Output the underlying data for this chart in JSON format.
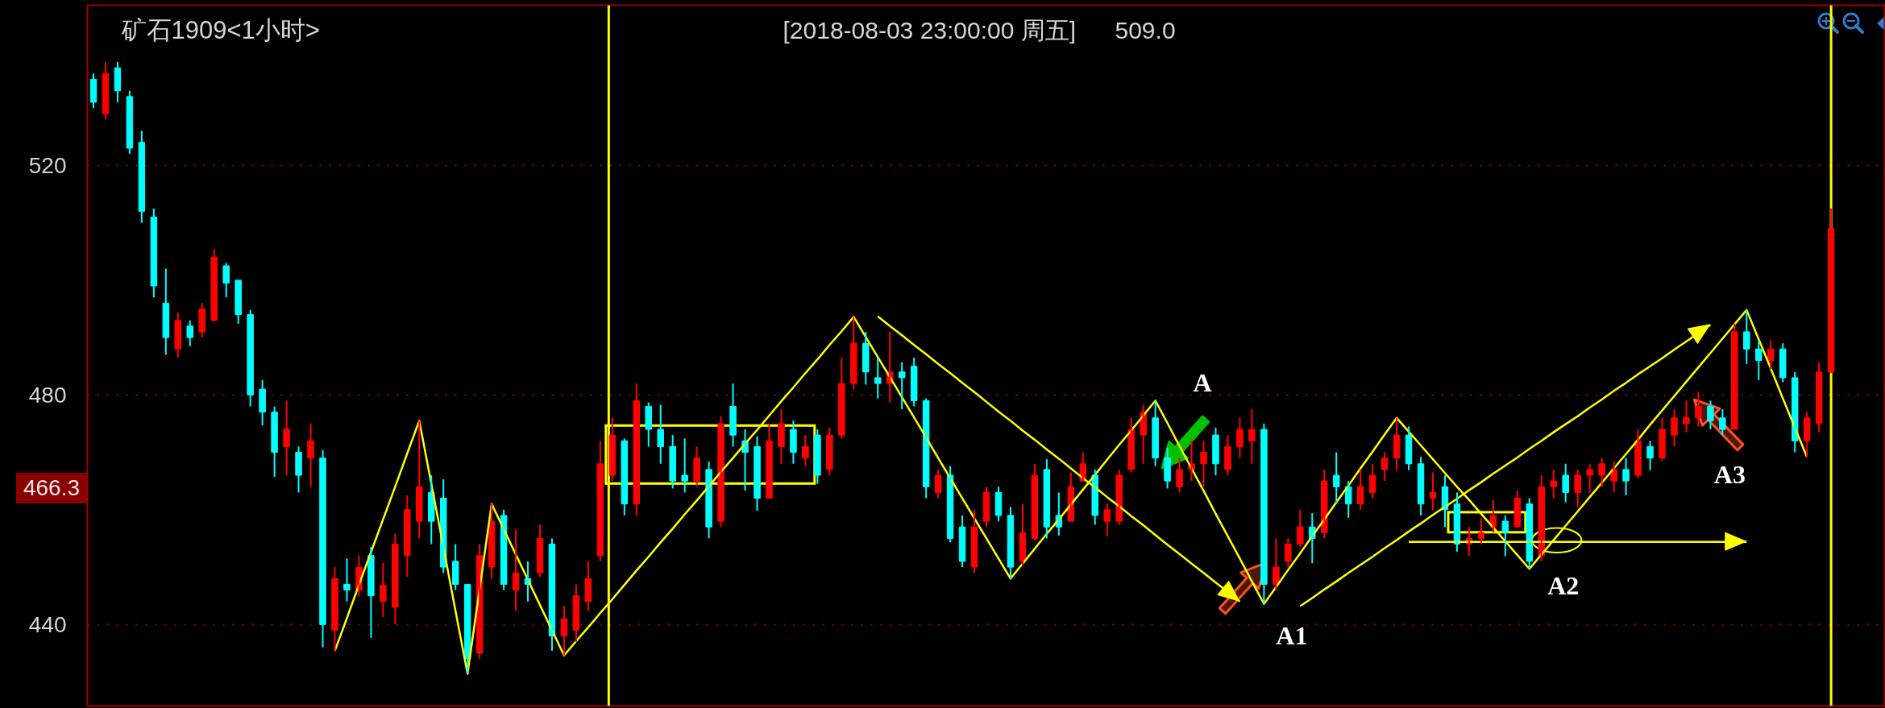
{
  "chart_data": {
    "type": "candlestick",
    "title": "矿石1909<1小时>",
    "subtitle": "[2018-08-03  23:00:00 周五]",
    "categories": [
      null,
      null,
      null,
      null,
      null,
      null,
      null,
      null,
      null,
      null,
      null,
      null,
      null,
      null,
      null,
      null,
      null,
      null,
      null,
      null,
      null,
      null,
      null,
      null,
      null,
      null,
      null,
      null,
      null,
      null,
      null,
      null,
      null,
      null,
      null,
      null,
      null,
      null,
      null,
      null,
      null,
      null,
      null,
      null,
      null,
      null,
      null,
      null,
      null,
      null,
      null,
      null,
      null,
      null,
      null,
      null,
      null,
      null,
      null,
      null,
      null,
      null,
      null,
      null,
      null,
      null,
      null,
      null,
      null,
      null,
      null,
      null,
      null,
      null,
      null,
      null,
      null,
      null,
      null,
      null,
      null,
      null,
      null,
      null,
      null,
      null,
      null,
      null,
      null,
      null,
      null,
      null,
      null,
      null,
      null,
      null,
      null,
      null,
      null,
      null,
      null,
      null,
      null,
      null,
      null,
      null,
      null,
      null,
      null,
      null,
      null,
      null,
      null,
      null,
      null,
      null,
      null,
      null,
      null,
      null,
      null,
      null,
      null,
      null,
      null,
      null,
      null,
      null,
      null,
      null,
      null,
      null,
      null,
      null,
      null,
      null,
      null,
      null,
      null,
      null,
      null,
      null,
      null,
      null,
      null,
      null,
      null,
      null,
      null
    ],
    "ohlc": [
      [
        535,
        536,
        530,
        531
      ],
      [
        529,
        538,
        528,
        536
      ],
      [
        537,
        538,
        531,
        533
      ],
      [
        532,
        533,
        522,
        523
      ],
      [
        524,
        526,
        510,
        512
      ],
      [
        511,
        512.5,
        497,
        499
      ],
      [
        496,
        502,
        487,
        490
      ],
      [
        488,
        494.4,
        486.5,
        493
      ],
      [
        492,
        493,
        488.5,
        490
      ],
      [
        491,
        496,
        490,
        495
      ],
      [
        493,
        505.4,
        492.8,
        504
      ],
      [
        502.5,
        503,
        497,
        499.5
      ],
      [
        500,
        500,
        492.4,
        494
      ],
      [
        494,
        494.8,
        478,
        480
      ],
      [
        481,
        482.6,
        474.7,
        477
      ],
      [
        477,
        478,
        465.7,
        470
      ],
      [
        471,
        479,
        466,
        474
      ],
      [
        470,
        471,
        463,
        466
      ],
      [
        469,
        475,
        464,
        472
      ],
      [
        469,
        470.4,
        436,
        440
      ],
      [
        439,
        450,
        435.4,
        448
      ],
      [
        447,
        451.5,
        444,
        446
      ],
      [
        446,
        452,
        445,
        450
      ],
      [
        452,
        453.5,
        437.7,
        445
      ],
      [
        444,
        450.7,
        441.3,
        446.8
      ],
      [
        443,
        455.8,
        440,
        454
      ],
      [
        452,
        462.5,
        448.3,
        460
      ],
      [
        458,
        475.5,
        455,
        464
      ],
      [
        463,
        466,
        454,
        458
      ],
      [
        462,
        465.3,
        449,
        450
      ],
      [
        451,
        454,
        446,
        447
      ],
      [
        447,
        447,
        431.4,
        434
      ],
      [
        435,
        454,
        434,
        452
      ],
      [
        450,
        461,
        448,
        458
      ],
      [
        459,
        460,
        446,
        447
      ],
      [
        446,
        456.6,
        442.4,
        449
      ],
      [
        448,
        451,
        444,
        447
      ],
      [
        449,
        457.4,
        448.3,
        455
      ],
      [
        454,
        455,
        435.4,
        438
      ],
      [
        438,
        443.2,
        434.6,
        441
      ],
      [
        439,
        447,
        437,
        445
      ],
      [
        444,
        451,
        442.4,
        448
      ],
      [
        452,
        472,
        451,
        468
      ],
      [
        466,
        476,
        465,
        473
      ],
      [
        472,
        472.4,
        459,
        461
      ],
      [
        461,
        482,
        459,
        479
      ],
      [
        478,
        478.7,
        471,
        474
      ],
      [
        474,
        478.3,
        468,
        471
      ],
      [
        471,
        473,
        463.7,
        465
      ],
      [
        466,
        472.4,
        463,
        465
      ],
      [
        465,
        471,
        464,
        469
      ],
      [
        467,
        468.4,
        455,
        457
      ],
      [
        458,
        476.3,
        457,
        475
      ],
      [
        478,
        482,
        471,
        473
      ],
      [
        472,
        474,
        463.3,
        470
      ],
      [
        471,
        472.8,
        459.8,
        462
      ],
      [
        462,
        475,
        462,
        472
      ],
      [
        471,
        477.5,
        468,
        475
      ],
      [
        474,
        475.5,
        468,
        470
      ],
      [
        469,
        473,
        467.6,
        471
      ],
      [
        473,
        474,
        464.5,
        466
      ],
      [
        467,
        474.3,
        466,
        473
      ],
      [
        473,
        486.5,
        472.4,
        482
      ],
      [
        482,
        493.6,
        481,
        489
      ],
      [
        489,
        491,
        481.8,
        484
      ],
      [
        483,
        486.5,
        479.4,
        482
      ],
      [
        482,
        491,
        478.7,
        484
      ],
      [
        484,
        485.7,
        477.5,
        483
      ],
      [
        485,
        486.5,
        478,
        479
      ],
      [
        479,
        479.4,
        462,
        464
      ],
      [
        463,
        467,
        462,
        466
      ],
      [
        466,
        467.6,
        454.3,
        455
      ],
      [
        457,
        459,
        450,
        451
      ],
      [
        450,
        460,
        449,
        457
      ],
      [
        458,
        464,
        457,
        463
      ],
      [
        463,
        464,
        458,
        459
      ],
      [
        459,
        460.5,
        448,
        450
      ],
      [
        451,
        461,
        450.3,
        456
      ],
      [
        455,
        468,
        454.6,
        466
      ],
      [
        467,
        468.8,
        455,
        457
      ],
      [
        459,
        463,
        455.5,
        457
      ],
      [
        458,
        466.5,
        458,
        464
      ],
      [
        465,
        470,
        465,
        468
      ],
      [
        466,
        467,
        457.4,
        459
      ],
      [
        458,
        461,
        455.4,
        460
      ],
      [
        458,
        467,
        457.4,
        466
      ],
      [
        467,
        476,
        466.5,
        474
      ],
      [
        473,
        478.3,
        468,
        477
      ],
      [
        476,
        479,
        467.6,
        469
      ],
      [
        469,
        470.8,
        463.7,
        465
      ],
      [
        464,
        469,
        463,
        467
      ],
      [
        467,
        472,
        465,
        468
      ],
      [
        468,
        472,
        464,
        470
      ],
      [
        473,
        474.3,
        466,
        468
      ],
      [
        467,
        473,
        466,
        471
      ],
      [
        471,
        476,
        469,
        474
      ],
      [
        472,
        477.5,
        468,
        474
      ],
      [
        474,
        475,
        443.6,
        447
      ],
      [
        447,
        455,
        446,
        450
      ],
      [
        451,
        455,
        450,
        454
      ],
      [
        454,
        460,
        453.5,
        457
      ],
      [
        457,
        459.4,
        450.7,
        455
      ],
      [
        456,
        467,
        455,
        465
      ],
      [
        466,
        470,
        461,
        464
      ],
      [
        464,
        465,
        458.6,
        461
      ],
      [
        461,
        467,
        460,
        464
      ],
      [
        463,
        468,
        462,
        466
      ],
      [
        467,
        470,
        465,
        469
      ],
      [
        469,
        476,
        466.9,
        473
      ],
      [
        473,
        474.5,
        466.9,
        468
      ],
      [
        468,
        469.2,
        459,
        461
      ],
      [
        462,
        466.5,
        460,
        463
      ],
      [
        464,
        466,
        457,
        460
      ],
      [
        461,
        463,
        452.7,
        454
      ],
      [
        454,
        457,
        451.9,
        455
      ],
      [
        455,
        458.5,
        454,
        456
      ],
      [
        457,
        461.7,
        456,
        459
      ],
      [
        458,
        459,
        451.9,
        456
      ],
      [
        457,
        463.3,
        457,
        462
      ],
      [
        461,
        462,
        449.7,
        451
      ],
      [
        452,
        466,
        451,
        464
      ],
      [
        464,
        467,
        462,
        465
      ],
      [
        466,
        468,
        461.3,
        463
      ],
      [
        463,
        467,
        460.5,
        466
      ],
      [
        466,
        468,
        463,
        467
      ],
      [
        466,
        469,
        464,
        468
      ],
      [
        465,
        468.5,
        463,
        467
      ],
      [
        467,
        469,
        462.5,
        465
      ],
      [
        466,
        474,
        465.5,
        472
      ],
      [
        471,
        472,
        466.9,
        469
      ],
      [
        469,
        476,
        468.5,
        474
      ],
      [
        473,
        477.5,
        471,
        476
      ],
      [
        475,
        479,
        473.5,
        476
      ],
      [
        476,
        480.5,
        474.5,
        478
      ],
      [
        478,
        479,
        474,
        475.5
      ],
      [
        476,
        477.5,
        473,
        474
      ],
      [
        474,
        492.4,
        474,
        491
      ],
      [
        491,
        494.8,
        485.4,
        488
      ],
      [
        488,
        489.5,
        482.6,
        486
      ],
      [
        486,
        489.5,
        484.5,
        488
      ],
      [
        488,
        489,
        482.2,
        483
      ],
      [
        483,
        484,
        470,
        472
      ],
      [
        472,
        477,
        469.2,
        476
      ],
      [
        475,
        485.7,
        473.5,
        484
      ],
      [
        484,
        512.5,
        483.8,
        509
      ],
      null,
      null,
      null,
      null
    ],
    "colors": [
      "#00ffff",
      "#ff0000",
      "#00ffff",
      "#00ffff",
      "#00ffff",
      "#00ffff",
      "#00ffff",
      "#ff0000",
      "#00ffff",
      "#ff0000",
      "#ff0000",
      "#00ffff",
      "#00ffff",
      "#00ffff",
      "#00ffff",
      "#00ffff",
      "#ff0000",
      "#00ffff",
      "#ff0000",
      "#00ffff",
      "#ff0000",
      "#00ffff",
      "#ff0000",
      "#00ffff",
      "#ff0000",
      "#ff0000",
      "#ff0000",
      "#ff0000",
      "#00ffff",
      "#00ffff",
      "#00ffff",
      "#00ffff",
      "#ff0000",
      "#ff0000",
      "#00ffff",
      "#ff0000",
      "#00ffff",
      "#ff0000",
      "#00ffff",
      "#ff0000",
      "#ff0000",
      "#ff0000",
      "#ff0000",
      "#ff0000",
      "#00ffff",
      "#ff0000",
      "#00ffff",
      "#00ffff",
      "#00ffff",
      "#00ffff",
      "#ff0000",
      "#00ffff",
      "#ff0000",
      "#00ffff",
      "#00ffff",
      "#00ffff",
      "#ff0000",
      "#ff0000",
      "#00ffff",
      "#ff0000",
      "#00ffff",
      "#ff0000",
      "#ff0000",
      "#ff0000",
      "#00ffff",
      "#00ffff",
      "#ff0000",
      "#00ffff",
      "#00ffff",
      "#00ffff",
      "#ff0000",
      "#00ffff",
      "#00ffff",
      "#ff0000",
      "#ff0000",
      "#00ffff",
      "#00ffff",
      "#ff0000",
      "#ff0000",
      "#00ffff",
      "#00ffff",
      "#ff0000",
      "#ff0000",
      "#00ffff",
      "#ff0000",
      "#ff0000",
      "#ff0000",
      "#ff0000",
      "#00ffff",
      "#00ffff",
      "#ff0000",
      "#ff0000",
      "#ff0000",
      "#00ffff",
      "#ff0000",
      "#ff0000",
      "#ff0000",
      "#00ffff",
      "#ff0000",
      "#ff0000",
      "#ff0000",
      "#00ffff",
      "#ff0000",
      "#00ffff",
      "#00ffff",
      "#ff0000",
      "#ff0000",
      "#ff0000",
      "#ff0000",
      "#00ffff",
      "#00ffff",
      "#ff0000",
      "#00ffff",
      "#00ffff",
      "#ff0000",
      "#ff0000",
      "#ff0000",
      "#00ffff",
      "#ff0000",
      "#00ffff",
      "#ff0000",
      "#ff0000",
      "#00ffff",
      "#ff0000",
      "#ff0000",
      "#ff0000",
      "#ff0000",
      "#00ffff",
      "#ff0000",
      "#00ffff",
      "#ff0000",
      "#ff0000",
      "#ff0000",
      "#ff0000",
      "#00ffff",
      "#00ffff",
      "#ff0000",
      "#00ffff",
      "#00ffff",
      "#ff0000",
      "#00ffff",
      "#00ffff",
      "#ff0000",
      "#ff0000",
      "#ff0000",
      null,
      null,
      null,
      null
    ],
    "series": [
      {
        "type": "line",
        "color": "#ffff00",
        "values": [
          null,
          null,
          null,
          null,
          null,
          null,
          null,
          null,
          null,
          null,
          null,
          null,
          null,
          null,
          null,
          null,
          null,
          null,
          null,
          null,
          435.4,
          441.1,
          446.9,
          452.6,
          458.3,
          464.0,
          469.8,
          475.5,
          464.5,
          453.5,
          442.4,
          431.4,
          446.2,
          461,
          456.6,
          452.2,
          447.8,
          443.4,
          439.0,
          434.6,
          437.1,
          439.5,
          442.0,
          444.4,
          446.9,
          449.4,
          451.8,
          454.3,
          456.7,
          459.2,
          461.6,
          464.1,
          466.6,
          469.0,
          471.5,
          473.9,
          476.4,
          478.9,
          481.3,
          483.8,
          486.2,
          488.7,
          491.1,
          493.6,
          490.1,
          486.6,
          483.1,
          479.6,
          476.1,
          472.6,
          469.0,
          465.5,
          462.0,
          458.5,
          455.0,
          451.5,
          448.0,
          450.6,
          453.2,
          455.8,
          458.3,
          460.9,
          463.5,
          466.1,
          468.7,
          471.3,
          473.8,
          476.4,
          479.0,
          475.1,
          471.1,
          467.2,
          463.3,
          459.3,
          455.4,
          451.5,
          447.5,
          443.6,
          446.5,
          449.5,
          452.4,
          455.4,
          458.3,
          461.3,
          464.2,
          467.2,
          470.1,
          473.1,
          476.0,
          473.6,
          471.2,
          468.8,
          466.4,
          464.0,
          461.7,
          459.3,
          456.9,
          454.5,
          452.1,
          449.7,
          452.2,
          454.7,
          457.2,
          459.7,
          462.2,
          464.7,
          467.2,
          469.7,
          472.2,
          474.8,
          477.3,
          479.8,
          482.3,
          484.8,
          487.3,
          489.8,
          492.3,
          494.8,
          489.7,
          484.6,
          479.4,
          474.3,
          469.2,
          null,
          null,
          null,
          null,
          null,
          null
        ]
      },
      {
        "type": "line",
        "color": "#ffff00",
        "values": [
          null,
          null,
          null,
          null,
          null,
          null,
          null,
          null,
          null,
          null,
          null,
          null,
          null,
          null,
          null,
          null,
          null,
          null,
          null,
          null,
          null,
          null,
          null,
          null,
          null,
          null,
          null,
          null,
          null,
          null,
          null,
          null,
          null,
          null,
          null,
          null,
          null,
          null,
          null,
          null,
          null,
          null,
          null,
          null,
          null,
          null,
          null,
          null,
          null,
          null,
          null,
          null,
          null,
          null,
          null,
          null,
          null,
          null,
          null,
          null,
          null,
          null,
          null,
          null,
          null,
          493.7,
          492.0,
          490.4,
          488.7,
          487.1,
          485.4,
          483.8,
          482.1,
          480.5,
          478.8,
          477.1,
          475.5,
          473.8,
          472.2,
          470.5,
          468.9,
          467.2,
          465.5,
          463.9,
          462.2,
          460.6,
          458.9,
          457.3,
          455.6,
          453.9,
          452.3,
          450.6,
          449.0,
          447.3,
          445.7,
          444.0,
          null,
          null,
          null,
          null,
          null,
          null,
          null,
          null,
          null,
          null,
          null,
          null,
          null,
          null,
          null,
          null,
          null,
          null,
          null,
          null,
          null,
          null,
          null,
          null,
          null,
          null,
          null,
          null,
          null,
          null,
          null,
          null,
          null,
          null,
          null,
          null,
          null,
          null,
          null,
          null,
          null,
          null,
          null,
          null,
          null,
          null,
          null,
          null,
          null,
          null,
          null,
          null,
          null
        ]
      },
      {
        "type": "line",
        "color": "#ffff00",
        "values": [
          null,
          null,
          null,
          null,
          null,
          null,
          null,
          null,
          null,
          null,
          null,
          null,
          null,
          null,
          null,
          null,
          null,
          null,
          null,
          null,
          null,
          null,
          null,
          null,
          null,
          null,
          null,
          null,
          null,
          null,
          null,
          null,
          null,
          null,
          null,
          null,
          null,
          null,
          null,
          null,
          null,
          null,
          null,
          null,
          null,
          null,
          null,
          null,
          null,
          null,
          null,
          null,
          null,
          null,
          null,
          null,
          null,
          null,
          null,
          null,
          null,
          null,
          null,
          null,
          null,
          null,
          null,
          null,
          null,
          null,
          null,
          null,
          null,
          null,
          null,
          null,
          null,
          null,
          null,
          null,
          null,
          null,
          null,
          null,
          null,
          null,
          null,
          null,
          null,
          null,
          null,
          null,
          null,
          null,
          null,
          null,
          null,
          null,
          null,
          null,
          443.2,
          444.6,
          446.1,
          447.5,
          449.0,
          450.4,
          451.8,
          453.3,
          454.7,
          456.2,
          457.6,
          459.1,
          460.5,
          461.9,
          463.4,
          464.8,
          466.3,
          467.7,
          469.1,
          470.6,
          472.0,
          473.5,
          474.9,
          476.3,
          477.8,
          479.2,
          480.7,
          482.1,
          483.6,
          485.0,
          486.4,
          487.9,
          489.3,
          490.8,
          492.2,
          null,
          null,
          null,
          null,
          null,
          null,
          null,
          null,
          null,
          null,
          null,
          null,
          null,
          null
        ]
      },
      {
        "type": "line",
        "color": "#ffff00",
        "values": [
          null,
          null,
          null,
          null,
          null,
          null,
          null,
          null,
          null,
          null,
          null,
          null,
          null,
          null,
          null,
          null,
          null,
          null,
          null,
          null,
          null,
          null,
          null,
          null,
          null,
          null,
          null,
          null,
          null,
          null,
          null,
          null,
          null,
          null,
          null,
          null,
          null,
          null,
          null,
          null,
          null,
          null,
          null,
          null,
          null,
          null,
          null,
          null,
          null,
          null,
          null,
          null,
          null,
          null,
          null,
          null,
          null,
          null,
          null,
          null,
          null,
          null,
          null,
          null,
          null,
          null,
          null,
          null,
          null,
          null,
          null,
          null,
          null,
          null,
          null,
          null,
          null,
          null,
          null,
          null,
          null,
          null,
          null,
          null,
          null,
          null,
          null,
          null,
          null,
          null,
          null,
          null,
          null,
          null,
          null,
          null,
          null,
          null,
          null,
          null,
          null,
          null,
          null,
          null,
          null,
          null,
          null,
          null,
          null,
          454.4,
          454.4,
          454.4,
          454.4,
          454.4,
          454.4,
          454.4,
          454.4,
          454.4,
          454.4,
          454.4,
          454.4,
          454.4,
          454.4,
          454.4,
          454.4,
          454.4,
          454.4,
          454.4,
          454.4,
          454.4,
          454.4,
          454.4,
          454.4,
          454.4,
          454.4,
          454.4,
          454.4,
          454.4,
          null,
          null,
          null,
          null,
          null,
          null,
          null,
          null,
          null,
          null,
          null
        ]
      }
    ],
    "ylim": [
      425.8,
      547.9
    ],
    "yticks": [
      440,
      480,
      520
    ],
    "grid": "y",
    "tick_labels": "y",
    "annotations": [
      "466.3",
      "509.0",
      "A",
      "A1",
      "A2",
      "A3"
    ]
  }
}
